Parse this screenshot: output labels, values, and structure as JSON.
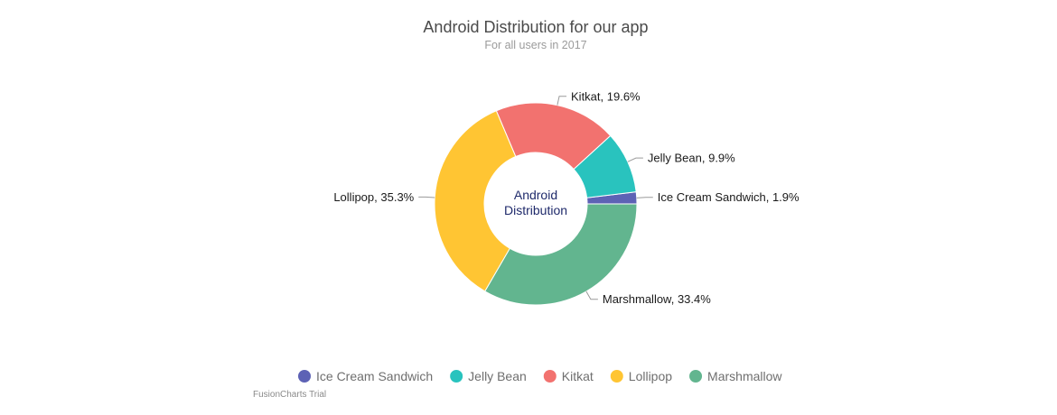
{
  "chart_data": {
    "type": "pie",
    "variant": "doughnut",
    "title": "Android Distribution for our app",
    "subtitle": "For all users in 2017",
    "center_label": [
      "Android",
      "Distribution"
    ],
    "slices": [
      {
        "label": "Ice Cream Sandwich",
        "value": 1.9,
        "display": "Ice Cream Sandwich, 1.9%",
        "color": "#5d62b5"
      },
      {
        "label": "Jelly Bean",
        "value": 9.9,
        "display": "Jelly Bean, 9.9%",
        "color": "#29c3be"
      },
      {
        "label": "Kitkat",
        "value": 19.6,
        "display": "Kitkat, 19.6%",
        "color": "#f2726f"
      },
      {
        "label": "Lollipop",
        "value": 35.3,
        "display": "Lollipop, 35.3%",
        "color": "#ffc533"
      },
      {
        "label": "Marshmallow",
        "value": 33.4,
        "display": "Marshmallow, 33.4%",
        "color": "#62b58f"
      }
    ],
    "legend": {
      "position": "bottom",
      "items": [
        "Ice Cream Sandwich",
        "Jelly Bean",
        "Kitkat",
        "Lollipop",
        "Marshmallow"
      ]
    }
  },
  "watermark": "FusionCharts Trial"
}
